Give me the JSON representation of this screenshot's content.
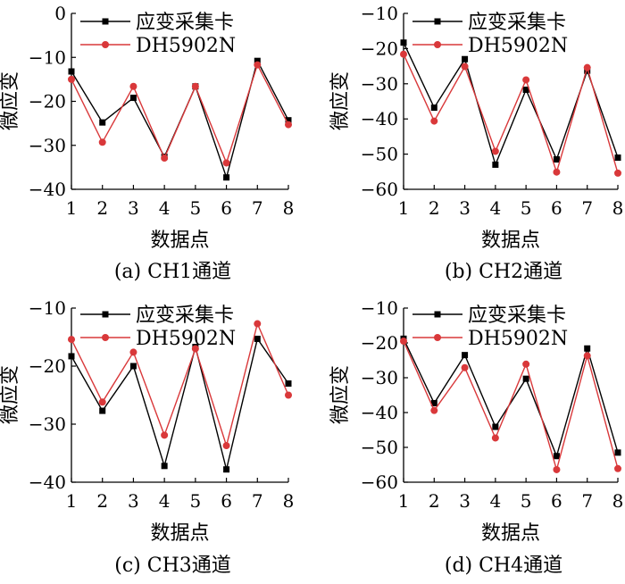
{
  "chart_data": [
    {
      "type": "line",
      "caption": "(a)  CH1通道",
      "xlabel": "数据点",
      "ylabel": "微应变",
      "x": [
        1,
        2,
        3,
        4,
        5,
        6,
        7,
        8
      ],
      "ylim": [
        -40,
        0
      ],
      "yticks": [
        -40,
        -30,
        -20,
        -10,
        0
      ],
      "ytick_labels": [
        "−40",
        "−30",
        "−20",
        "−10",
        "0"
      ],
      "legend_position": "top-left",
      "series": [
        {
          "name": "应变采集卡",
          "color": "#000000",
          "marker": "square",
          "values": [
            -13.2,
            -24.8,
            -19.2,
            -32.6,
            -16.6,
            -37.3,
            -10.8,
            -24.3
          ]
        },
        {
          "name": "DH5902N",
          "color": "#d9383a",
          "marker": "circle",
          "values": [
            -15.0,
            -29.3,
            -16.6,
            -32.9,
            -16.6,
            -34.0,
            -11.7,
            -25.3
          ]
        }
      ]
    },
    {
      "type": "line",
      "caption": "(b)  CH2通道",
      "xlabel": "数据点",
      "ylabel": "微应变",
      "x": [
        1,
        2,
        3,
        4,
        5,
        6,
        7,
        8
      ],
      "ylim": [
        -60,
        -10
      ],
      "yticks": [
        -60,
        -50,
        -40,
        -30,
        -20,
        -10
      ],
      "ytick_labels": [
        "−60",
        "−50",
        "−40",
        "−30",
        "−20",
        "−10"
      ],
      "legend_position": "top-left",
      "series": [
        {
          "name": "应变采集卡",
          "color": "#000000",
          "marker": "square",
          "values": [
            -18.3,
            -36.8,
            -23.0,
            -53.0,
            -31.7,
            -51.5,
            -26.3,
            -51.0
          ]
        },
        {
          "name": "DH5902N",
          "color": "#d9383a",
          "marker": "circle",
          "values": [
            -21.6,
            -40.6,
            -25.1,
            -49.2,
            -28.9,
            -55.1,
            -25.4,
            -55.4
          ]
        }
      ]
    },
    {
      "type": "line",
      "caption": "(c)  CH3通道",
      "xlabel": "数据点",
      "ylabel": "微应变",
      "x": [
        1,
        2,
        3,
        4,
        5,
        6,
        7,
        8
      ],
      "ylim": [
        -40,
        -10
      ],
      "yticks": [
        -40,
        -30,
        -20,
        -10
      ],
      "ytick_labels": [
        "−40",
        "−30",
        "−20",
        "−10"
      ],
      "legend_position": "top-left",
      "series": [
        {
          "name": "应变采集卡",
          "color": "#000000",
          "marker": "square",
          "values": [
            -18.3,
            -27.7,
            -20.0,
            -37.2,
            -16.7,
            -37.8,
            -15.3,
            -23.0
          ]
        },
        {
          "name": "DH5902N",
          "color": "#d9383a",
          "marker": "circle",
          "values": [
            -15.4,
            -26.2,
            -17.6,
            -31.9,
            -17.0,
            -33.7,
            -12.7,
            -25.0
          ]
        }
      ]
    },
    {
      "type": "line",
      "caption": "(d)  CH4通道",
      "xlabel": "数据点",
      "ylabel": "微应变",
      "x": [
        1,
        2,
        3,
        4,
        5,
        6,
        7,
        8
      ],
      "ylim": [
        -60,
        -10
      ],
      "yticks": [
        -60,
        -50,
        -40,
        -30,
        -20,
        -10
      ],
      "ytick_labels": [
        "−60",
        "−50",
        "−40",
        "−30",
        "−20",
        "−10"
      ],
      "legend_position": "top-left",
      "series": [
        {
          "name": "应变采集卡",
          "color": "#000000",
          "marker": "square",
          "values": [
            -18.8,
            -37.3,
            -23.5,
            -44.1,
            -30.3,
            -52.5,
            -21.6,
            -51.5
          ]
        },
        {
          "name": "DH5902N",
          "color": "#d9383a",
          "marker": "circle",
          "values": [
            -19.5,
            -39.4,
            -27.1,
            -47.3,
            -26.1,
            -56.4,
            -23.7,
            -56.1
          ]
        }
      ]
    }
  ]
}
